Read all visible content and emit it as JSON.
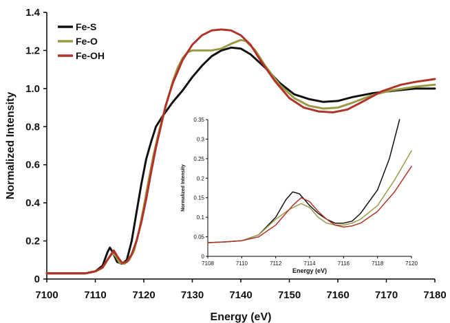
{
  "chart_data": [
    {
      "type": "line",
      "xlabel": "Energy (eV)",
      "ylabel": "Normalized Intensity",
      "xlim": [
        7100,
        7180
      ],
      "ylim": [
        0,
        1.4
      ],
      "xticks": [
        "7100",
        "7110",
        "7120",
        "7130",
        "7140",
        "7150",
        "7160",
        "7170",
        "7180"
      ],
      "yticks": [
        "0",
        "0.2",
        "0.4",
        "0.6",
        "0.8",
        "1.0",
        "1.2",
        "1.4"
      ],
      "grid": false,
      "legend": "top-left",
      "series": [
        {
          "name": "Fe-S",
          "color": "#111111",
          "points": [
            [
              7100,
              0.03
            ],
            [
              7108,
              0.03
            ],
            [
              7110,
              0.04
            ],
            [
              7111.5,
              0.07
            ],
            [
              7112.5,
              0.14
            ],
            [
              7113,
              0.165
            ],
            [
              7113.6,
              0.14
            ],
            [
              7114.5,
              0.09
            ],
            [
              7115.5,
              0.08
            ],
            [
              7116.5,
              0.1
            ],
            [
              7117.5,
              0.2
            ],
            [
              7118.5,
              0.35
            ],
            [
              7119.5,
              0.5
            ],
            [
              7120.5,
              0.63
            ],
            [
              7121.5,
              0.72
            ],
            [
              7122.5,
              0.8
            ],
            [
              7124,
              0.86
            ],
            [
              7126,
              0.93
            ],
            [
              7128,
              0.99
            ],
            [
              7130,
              1.06
            ],
            [
              7132,
              1.12
            ],
            [
              7134,
              1.17
            ],
            [
              7136,
              1.2
            ],
            [
              7138,
              1.215
            ],
            [
              7140,
              1.21
            ],
            [
              7142,
              1.18
            ],
            [
              7145,
              1.11
            ],
            [
              7148,
              1.03
            ],
            [
              7151,
              0.97
            ],
            [
              7154,
              0.945
            ],
            [
              7157,
              0.93
            ],
            [
              7160,
              0.935
            ],
            [
              7163,
              0.955
            ],
            [
              7167,
              0.975
            ],
            [
              7172,
              0.99
            ],
            [
              7176,
              1.0
            ],
            [
              7180,
              1.0
            ]
          ]
        },
        {
          "name": "Fe-O",
          "color": "#9a9a45",
          "points": [
            [
              7100,
              0.03
            ],
            [
              7108,
              0.03
            ],
            [
              7110,
              0.04
            ],
            [
              7111.5,
              0.06
            ],
            [
              7112.5,
              0.1
            ],
            [
              7113.5,
              0.135
            ],
            [
              7114.2,
              0.12
            ],
            [
              7115,
              0.085
            ],
            [
              7116,
              0.08
            ],
            [
              7117,
              0.1
            ],
            [
              7118,
              0.15
            ],
            [
              7119,
              0.25
            ],
            [
              7120,
              0.38
            ],
            [
              7121,
              0.52
            ],
            [
              7122,
              0.65
            ],
            [
              7123,
              0.76
            ],
            [
              7124,
              0.86
            ],
            [
              7125,
              0.95
            ],
            [
              7126,
              1.04
            ],
            [
              7127,
              1.11
            ],
            [
              7128,
              1.16
            ],
            [
              7129,
              1.19
            ],
            [
              7130,
              1.2
            ],
            [
              7132,
              1.2
            ],
            [
              7134,
              1.2
            ],
            [
              7136,
              1.21
            ],
            [
              7138,
              1.235
            ],
            [
              7140,
              1.255
            ],
            [
              7141,
              1.25
            ],
            [
              7143,
              1.2
            ],
            [
              7145,
              1.12
            ],
            [
              7148,
              1.02
            ],
            [
              7151,
              0.95
            ],
            [
              7154,
              0.91
            ],
            [
              7157,
              0.895
            ],
            [
              7160,
              0.9
            ],
            [
              7163,
              0.925
            ],
            [
              7167,
              0.965
            ],
            [
              7171,
              0.99
            ],
            [
              7176,
              1.01
            ],
            [
              7180,
              1.02
            ]
          ]
        },
        {
          "name": "Fe-OH",
          "color": "#b0332a",
          "points": [
            [
              7100,
              0.03
            ],
            [
              7108,
              0.03
            ],
            [
              7110,
              0.04
            ],
            [
              7111.5,
              0.06
            ],
            [
              7112.5,
              0.1
            ],
            [
              7113.8,
              0.15
            ],
            [
              7114.5,
              0.12
            ],
            [
              7115.5,
              0.085
            ],
            [
              7116.5,
              0.09
            ],
            [
              7117.5,
              0.13
            ],
            [
              7118.5,
              0.2
            ],
            [
              7119.5,
              0.3
            ],
            [
              7120.5,
              0.42
            ],
            [
              7121.5,
              0.56
            ],
            [
              7122.5,
              0.69
            ],
            [
              7123.5,
              0.8
            ],
            [
              7124.5,
              0.91
            ],
            [
              7126,
              1.03
            ],
            [
              7128,
              1.15
            ],
            [
              7130,
              1.23
            ],
            [
              7132,
              1.28
            ],
            [
              7134,
              1.305
            ],
            [
              7136,
              1.31
            ],
            [
              7138,
              1.305
            ],
            [
              7140,
              1.28
            ],
            [
              7142,
              1.23
            ],
            [
              7144,
              1.15
            ],
            [
              7147,
              1.04
            ],
            [
              7150,
              0.95
            ],
            [
              7153,
              0.9
            ],
            [
              7156,
              0.88
            ],
            [
              7159,
              0.875
            ],
            [
              7162,
              0.89
            ],
            [
              7165,
              0.93
            ],
            [
              7169,
              0.985
            ],
            [
              7173,
              1.02
            ],
            [
              7176,
              1.035
            ],
            [
              7180,
              1.05
            ]
          ]
        }
      ]
    },
    {
      "type": "line",
      "xlabel": "Energy (eV)",
      "ylabel": "Normalized Intensity",
      "xlim": [
        7108,
        7120
      ],
      "ylim": [
        0,
        0.35
      ],
      "xticks": [
        "7108",
        "7110",
        "7112",
        "7114",
        "7116",
        "7118",
        "7120"
      ],
      "yticks": [
        "0",
        "0.05",
        "0.1",
        "0.15",
        "0.2",
        "0.25",
        "0.3",
        "0.35"
      ],
      "grid": false,
      "series": [
        {
          "name": "Fe-S",
          "color": "#111111",
          "points": [
            [
              7108,
              0.035
            ],
            [
              7109,
              0.037
            ],
            [
              7110,
              0.04
            ],
            [
              7111,
              0.055
            ],
            [
              7112,
              0.1
            ],
            [
              7112.6,
              0.145
            ],
            [
              7113,
              0.165
            ],
            [
              7113.4,
              0.16
            ],
            [
              7114,
              0.13
            ],
            [
              7114.5,
              0.11
            ],
            [
              7115,
              0.095
            ],
            [
              7115.5,
              0.085
            ],
            [
              7116,
              0.085
            ],
            [
              7116.5,
              0.09
            ],
            [
              7117,
              0.11
            ],
            [
              7118,
              0.17
            ],
            [
              7118.7,
              0.25
            ],
            [
              7119.3,
              0.35
            ]
          ]
        },
        {
          "name": "Fe-O",
          "color": "#9a9a45",
          "points": [
            [
              7108,
              0.035
            ],
            [
              7109,
              0.037
            ],
            [
              7110,
              0.04
            ],
            [
              7111,
              0.055
            ],
            [
              7112,
              0.095
            ],
            [
              7112.8,
              0.12
            ],
            [
              7113.5,
              0.135
            ],
            [
              7114,
              0.125
            ],
            [
              7114.5,
              0.1
            ],
            [
              7115,
              0.085
            ],
            [
              7115.5,
              0.08
            ],
            [
              7116,
              0.08
            ],
            [
              7116.5,
              0.085
            ],
            [
              7117,
              0.095
            ],
            [
              7118,
              0.13
            ],
            [
              7119,
              0.195
            ],
            [
              7120,
              0.27
            ]
          ]
        },
        {
          "name": "Fe-OH",
          "color": "#b0332a",
          "points": [
            [
              7108,
              0.035
            ],
            [
              7109,
              0.037
            ],
            [
              7110,
              0.04
            ],
            [
              7111,
              0.05
            ],
            [
              7112,
              0.08
            ],
            [
              7113,
              0.13
            ],
            [
              7113.5,
              0.15
            ],
            [
              7114,
              0.14
            ],
            [
              7114.5,
              0.115
            ],
            [
              7115,
              0.095
            ],
            [
              7115.5,
              0.08
            ],
            [
              7116,
              0.075
            ],
            [
              7116.5,
              0.078
            ],
            [
              7117,
              0.085
            ],
            [
              7118,
              0.115
            ],
            [
              7119,
              0.165
            ],
            [
              7120,
              0.23
            ]
          ]
        }
      ]
    }
  ]
}
